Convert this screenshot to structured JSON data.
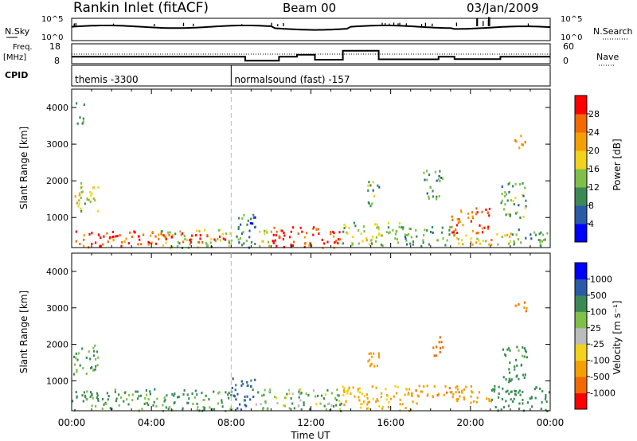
{
  "header": {
    "station": "Rankin Inlet (fitACF)",
    "beam": "Beam 00",
    "date": "03/Jan/2009"
  },
  "summary_panel": {
    "nsky_label": "N.Sky",
    "nsky_ticks": [
      "10^5",
      "10^0"
    ],
    "nsearch_label": "N.Search",
    "nsearch_ticks": [
      "10^5",
      "10^0"
    ],
    "freq_label": "Freq.",
    "freq_unit": "[MHz]",
    "freq_ticks": [
      "18",
      "8"
    ],
    "nave_label": "Nave",
    "nave_ticks": [
      "60",
      "0"
    ],
    "cpid_label": "CPID",
    "cpid_segments": [
      {
        "name": "themis -3300",
        "start_hour": 0,
        "end_hour": 8
      },
      {
        "name": "normalsound (fast) -157",
        "start_hour": 8,
        "end_hour": 24
      }
    ]
  },
  "colors": {
    "power_scale": [
      "#0000ff",
      "#2a5aa8",
      "#3b8a55",
      "#7fbf4a",
      "#f2d21b",
      "#f59f00",
      "#f26a00",
      "#ff0000"
    ],
    "velocity_scale": [
      "#ff0000",
      "#f26a00",
      "#f59f00",
      "#f2d21b",
      "#bbbbbb",
      "#7fbf4a",
      "#3b8a55",
      "#2a5aa8",
      "#0000ff"
    ]
  },
  "chart_data": [
    {
      "type": "heatmap",
      "name": "power",
      "ylabel": "Slant Range [km]",
      "xlabel": "",
      "x_ticks": [
        "00:00",
        "04:00",
        "08:00",
        "12:00",
        "16:00",
        "20:00",
        "00:00"
      ],
      "y_ticks": [
        "1000",
        "2000",
        "3000",
        "4000"
      ],
      "xlim": [
        0,
        24
      ],
      "ylim": [
        180,
        4500
      ],
      "colorbar_label": "Power [dB]",
      "colorbar_ticks": [
        "4",
        "8",
        "12",
        "16",
        "20",
        "24",
        "28"
      ],
      "colorbar_range": [
        0,
        30
      ],
      "regions": [
        {
          "x0": 0.0,
          "x1": 4.3,
          "y0": 200,
          "y1": 650,
          "value": 26
        },
        {
          "x0": 4.3,
          "x1": 8.0,
          "y0": 200,
          "y1": 700,
          "value": 15
        },
        {
          "x0": 4.3,
          "x1": 8.0,
          "y0": 350,
          "y1": 600,
          "value": 27
        },
        {
          "x0": 8.0,
          "x1": 9.2,
          "y0": 200,
          "y1": 1100,
          "value": 8
        },
        {
          "x0": 9.2,
          "x1": 10.0,
          "y0": 200,
          "y1": 700,
          "value": 16
        },
        {
          "x0": 10.0,
          "x1": 13.5,
          "y0": 200,
          "y1": 800,
          "value": 27
        },
        {
          "x0": 13.5,
          "x1": 16.5,
          "y0": 250,
          "y1": 900,
          "value": 14
        },
        {
          "x0": 16.5,
          "x1": 19.0,
          "y0": 250,
          "y1": 800,
          "value": 10
        },
        {
          "x0": 19.0,
          "x1": 21.0,
          "y0": 600,
          "y1": 1300,
          "value": 25
        },
        {
          "x0": 19.0,
          "x1": 22.0,
          "y0": 250,
          "y1": 600,
          "value": 18
        },
        {
          "x0": 22.0,
          "x1": 24.0,
          "y0": 250,
          "y1": 700,
          "value": 9
        },
        {
          "x0": 0.0,
          "x1": 1.3,
          "y0": 1200,
          "y1": 2000,
          "value": 16
        },
        {
          "x0": 0.2,
          "x1": 0.6,
          "y0": 3500,
          "y1": 4200,
          "value": 12
        },
        {
          "x0": 14.8,
          "x1": 15.4,
          "y0": 1300,
          "y1": 2100,
          "value": 12
        },
        {
          "x0": 17.6,
          "x1": 18.6,
          "y0": 1500,
          "y1": 2300,
          "value": 10
        },
        {
          "x0": 21.5,
          "x1": 22.8,
          "y0": 1000,
          "y1": 2000,
          "value": 12
        },
        {
          "x0": 22.2,
          "x1": 22.8,
          "y0": 2900,
          "y1": 3300,
          "value": 22
        }
      ]
    },
    {
      "type": "heatmap",
      "name": "velocity",
      "ylabel": "Slant Range [km]",
      "xlabel": "Time UT",
      "x_ticks": [
        "00:00",
        "04:00",
        "08:00",
        "12:00",
        "16:00",
        "20:00",
        "00:00"
      ],
      "y_ticks": [
        "1000",
        "2000",
        "3000",
        "4000"
      ],
      "xlim": [
        0,
        24
      ],
      "ylim": [
        180,
        4500
      ],
      "colorbar_label": "Velocity  [m s⁻¹]",
      "colorbar_ticks": [
        "1000",
        "500",
        "100",
        "25",
        "-25",
        "-100",
        "-500",
        "-1000"
      ],
      "regions": [
        {
          "x0": 0.0,
          "x1": 8.0,
          "y0": 200,
          "y1": 800,
          "value": 150
        },
        {
          "x0": 8.0,
          "x1": 9.2,
          "y0": 200,
          "y1": 1100,
          "value": 600
        },
        {
          "x0": 9.2,
          "x1": 13.5,
          "y0": 200,
          "y1": 800,
          "value": 60
        },
        {
          "x0": 13.5,
          "x1": 17.0,
          "y0": 200,
          "y1": 900,
          "value": -150
        },
        {
          "x0": 17.0,
          "x1": 21.0,
          "y0": 400,
          "y1": 900,
          "value": -400
        },
        {
          "x0": 21.0,
          "x1": 24.0,
          "y0": 200,
          "y1": 900,
          "value": 300
        },
        {
          "x0": 0.0,
          "x1": 1.3,
          "y0": 1200,
          "y1": 2000,
          "value": 150
        },
        {
          "x0": 14.8,
          "x1": 15.4,
          "y0": 1300,
          "y1": 2100,
          "value": -200
        },
        {
          "x0": 18.0,
          "x1": 18.6,
          "y0": 1700,
          "y1": 2300,
          "value": -700
        },
        {
          "x0": 21.5,
          "x1": 22.8,
          "y0": 1000,
          "y1": 2000,
          "value": 200
        },
        {
          "x0": 22.2,
          "x1": 22.8,
          "y0": 2900,
          "y1": 3300,
          "value": -500
        }
      ]
    }
  ]
}
